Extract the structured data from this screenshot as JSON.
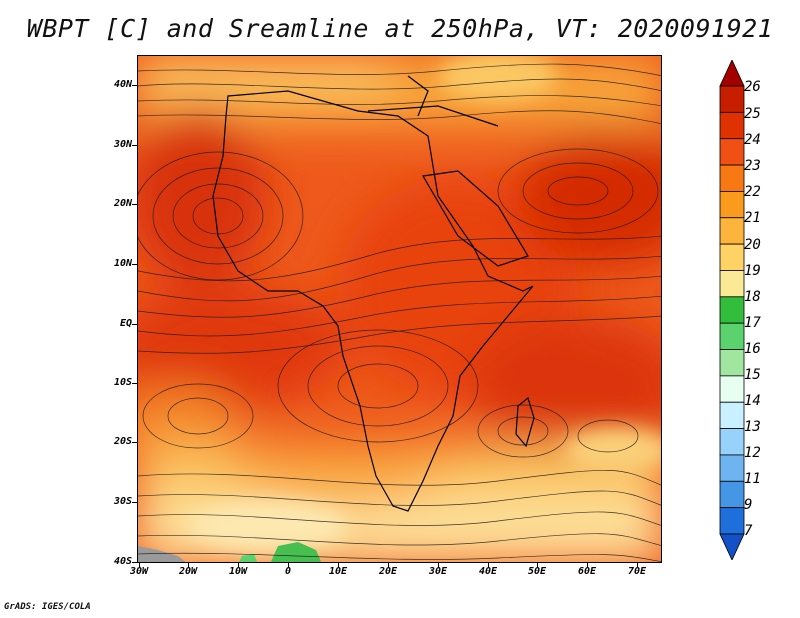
{
  "title": "WBPT [C] and Sreamline at 250hPa, VT: 2020091921",
  "credit": "GrADS: IGES/COLA",
  "map": {
    "lat_labels": [
      "40N",
      "30N",
      "20N",
      "10N",
      "EQ",
      "10S",
      "20S",
      "30S",
      "40S"
    ],
    "lon_labels": [
      "30W",
      "20W",
      "10W",
      "0",
      "10E",
      "20E",
      "30E",
      "40E",
      "50E",
      "60E",
      "70E"
    ],
    "lat_range": [
      -40,
      45
    ],
    "lon_range": [
      -30,
      75
    ]
  },
  "colorbar": {
    "labels": [
      "26",
      "25",
      "24",
      "23",
      "22",
      "21",
      "20",
      "19",
      "18",
      "17",
      "16",
      "15",
      "14",
      "13",
      "12",
      "11",
      "9",
      "7"
    ],
    "colors": [
      "#a50000",
      "#c81e00",
      "#e03200",
      "#f05014",
      "#f87814",
      "#fa9b1e",
      "#fcb43c",
      "#fed264",
      "#fbe996",
      "#32be3c",
      "#5ad26e",
      "#a0e6a0",
      "#e6fff0",
      "#c8f0ff",
      "#96d2fa",
      "#6eb4f0",
      "#4696e6",
      "#1e6edc",
      "#1450c8"
    ]
  },
  "field_colors": {
    "hot": "#e0320a",
    "warm": "#f0641e",
    "mid": "#f8962e",
    "cool": "#fcc35a",
    "pale": "#fde6a0",
    "green": "#46be50",
    "grey": "#9a9a9a",
    "line": "#1a1a1a"
  }
}
